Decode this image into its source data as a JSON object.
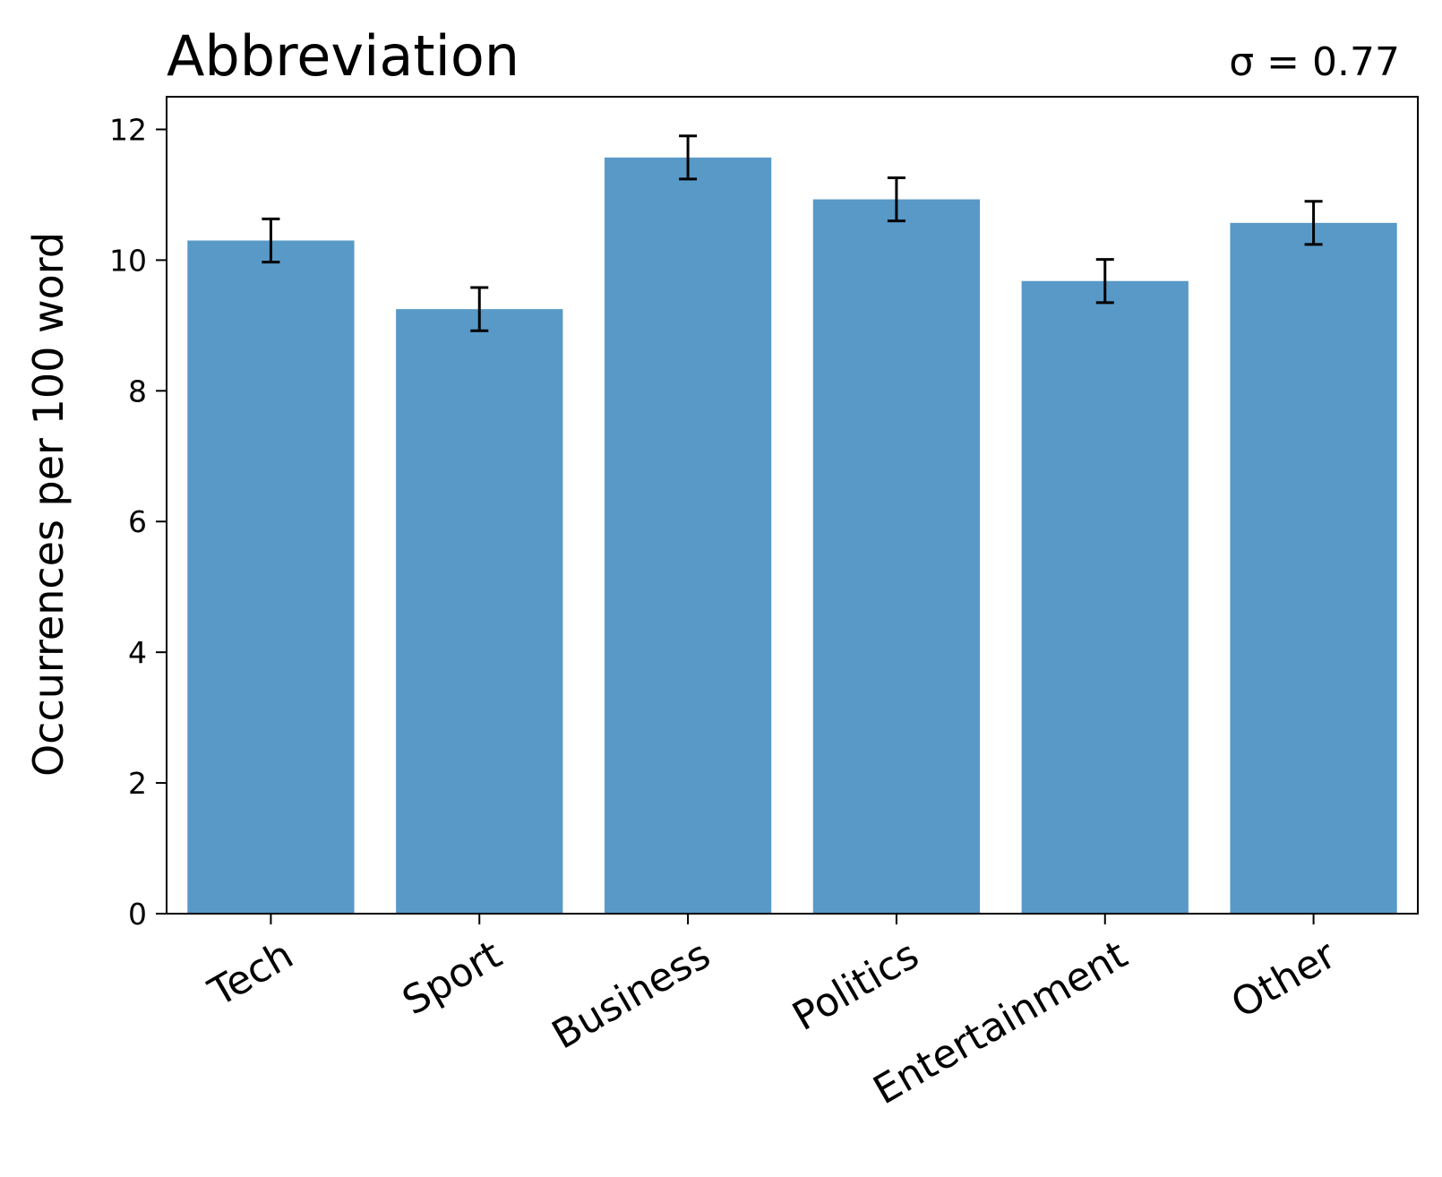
{
  "chart_data": {
    "type": "bar",
    "title": "Abbreviation",
    "annotation": "σ = 0.77",
    "xlabel": "",
    "ylabel": "Occurrences per 100 word",
    "categories": [
      "Tech",
      "Sport",
      "Business",
      "Politics",
      "Entertainment",
      "Other"
    ],
    "values": [
      10.3,
      9.25,
      11.57,
      10.93,
      9.68,
      10.57
    ],
    "errors": [
      0.33,
      0.33,
      0.33,
      0.33,
      0.33,
      0.33
    ],
    "ylim": [
      0,
      12.5
    ],
    "yticks": [
      0,
      2,
      4,
      6,
      8,
      10,
      12
    ],
    "grid": false,
    "legend": "none",
    "bar_color": "#5899c7",
    "error_color": "#000000"
  }
}
